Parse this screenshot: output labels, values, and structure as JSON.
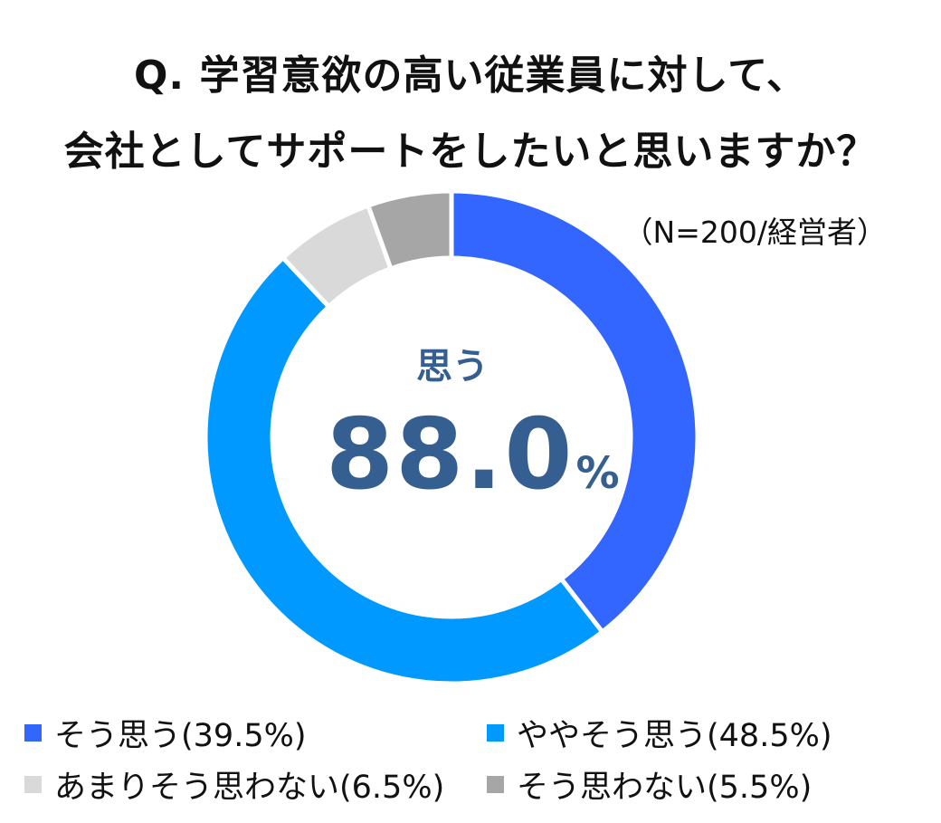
{
  "title": {
    "line1": "Q. 学習意欲の高い従業員に対して、",
    "line2": "会社としてサポートをしたいと思いますか？"
  },
  "note": "（N=200/経営者）",
  "center": {
    "label": "思う",
    "value": "88.0",
    "unit": "%"
  },
  "chart_data": {
    "type": "donut",
    "title": "Q. 学習意欲の高い従業員に対して、会社としてサポートをしたいと思いますか？",
    "unit": "%",
    "categories": [
      "そう思う",
      "ややそう思う",
      "あまりそう思わない",
      "そう思わない"
    ],
    "values": [
      39.5,
      48.5,
      6.5,
      5.5
    ],
    "colors": [
      "#3366ff",
      "#0099ff",
      "#d9d9d9",
      "#a6a6a6"
    ],
    "legend_labels": [
      "そう思う(39.5%)",
      "ややそう思う(48.5%)",
      "あまりそう思わない(6.5%)",
      "そう思わない(5.5%)"
    ],
    "legend_placement": "bottom",
    "center_text": "思う 88.0%"
  }
}
